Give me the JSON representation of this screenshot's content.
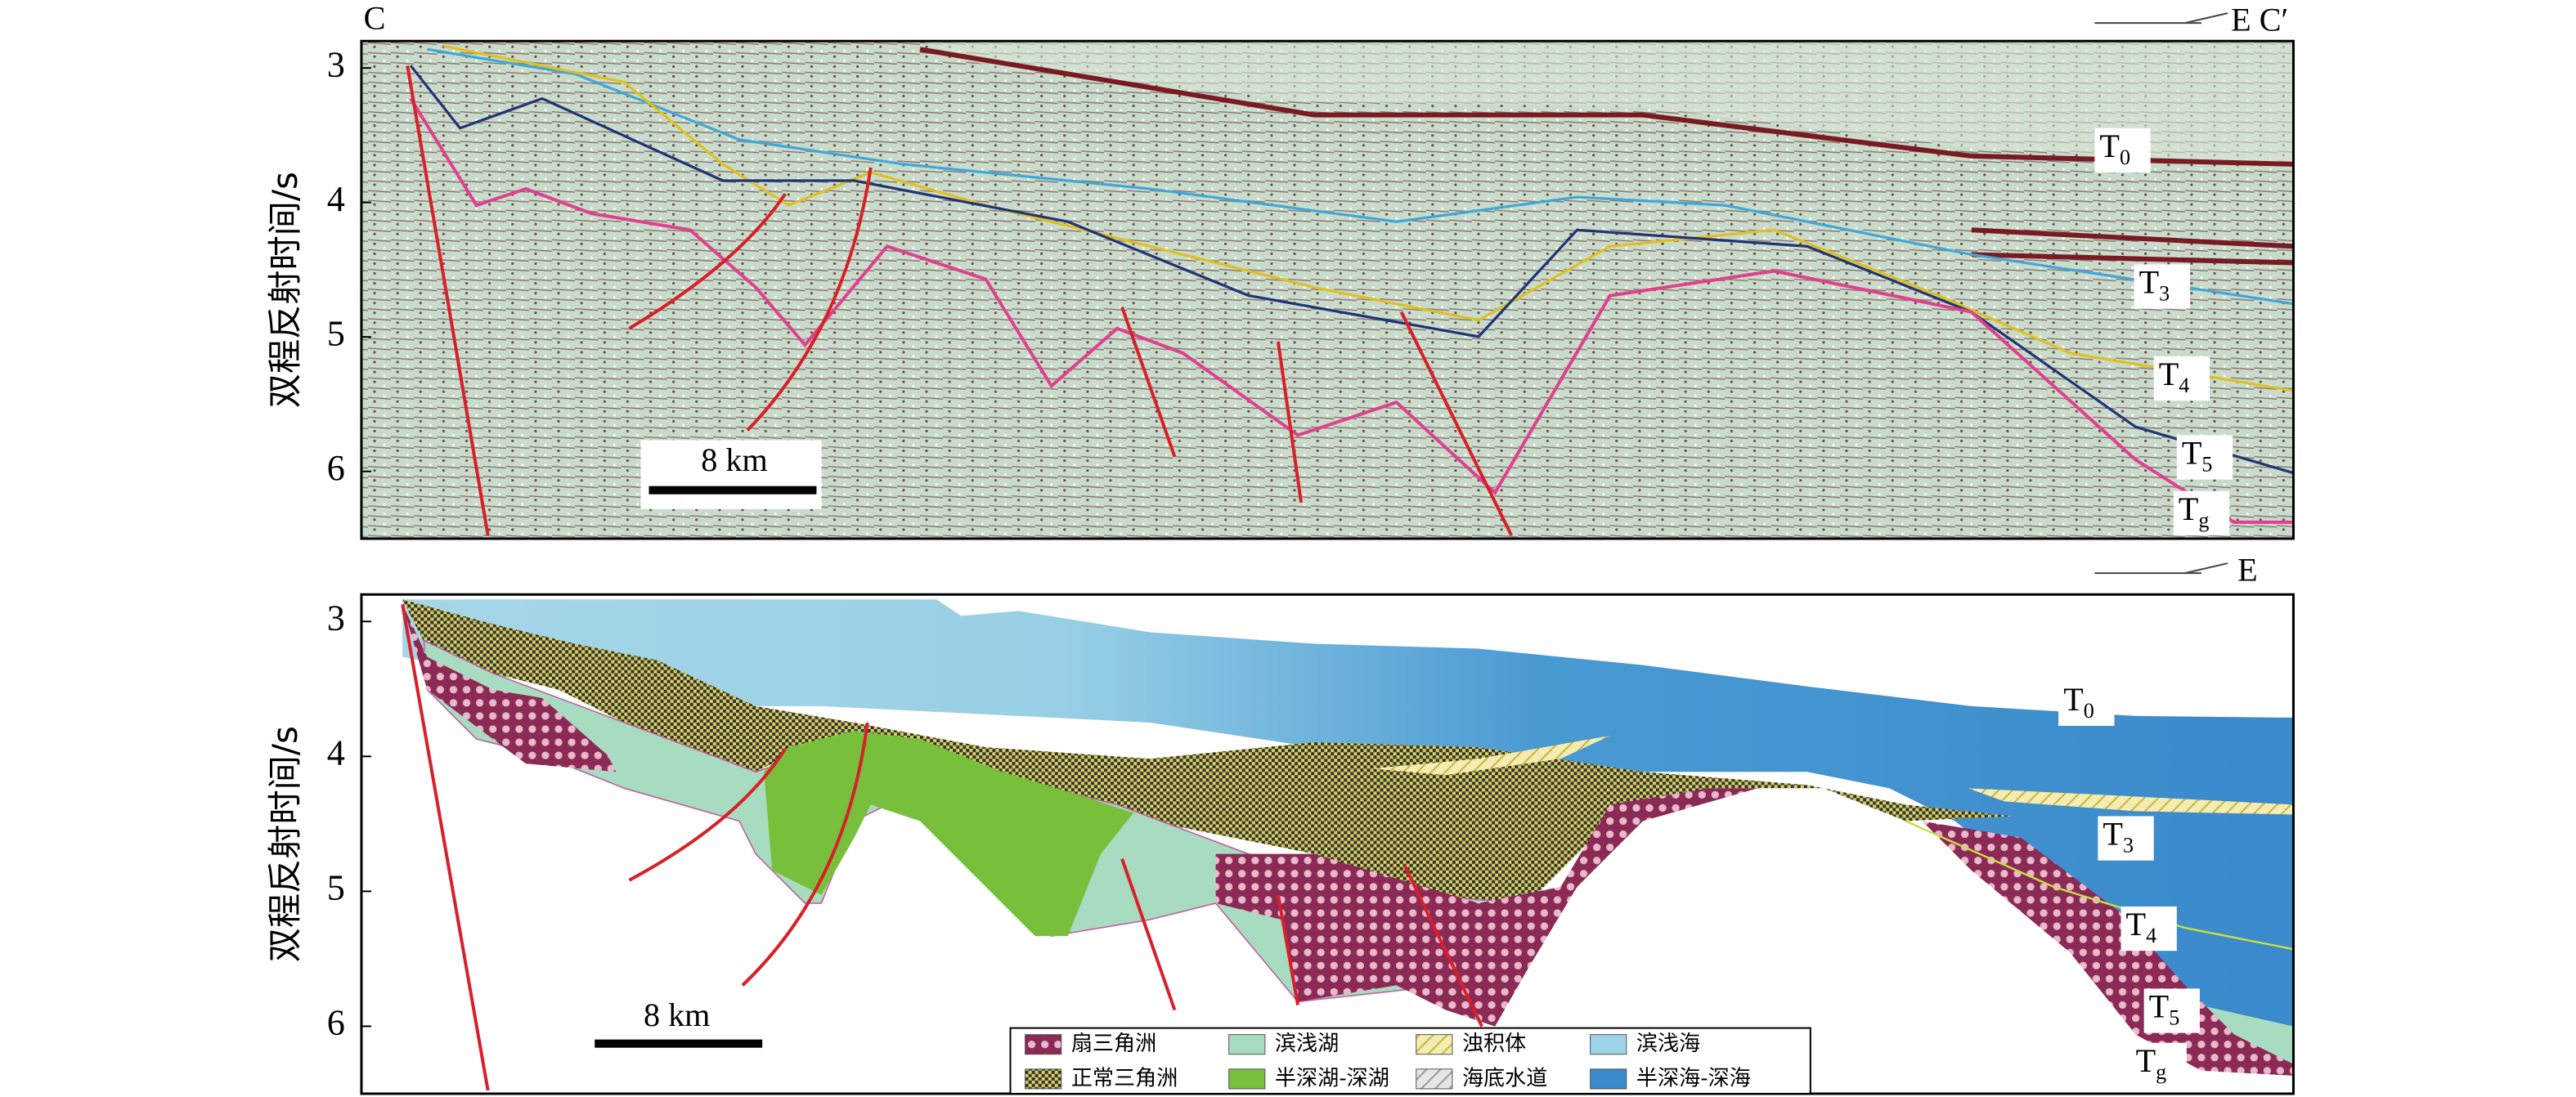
{
  "panels": [
    {
      "label_left": "C",
      "label_right": "E C′",
      "y_axis_title": "双程反射时间/s",
      "yticks": [
        3,
        4,
        5,
        6
      ],
      "ylim": [
        2.8,
        6.5
      ],
      "horizons": [
        {
          "base": "T",
          "sub": "0"
        },
        {
          "base": "T",
          "sub": "3"
        },
        {
          "base": "T",
          "sub": "4"
        },
        {
          "base": "T",
          "sub": "5"
        },
        {
          "base": "T",
          "sub": "g"
        }
      ],
      "scale_bar": "8 km"
    },
    {
      "label_right": "E",
      "y_axis_title": "双程反射时间/s",
      "yticks": [
        3,
        4,
        5,
        6
      ],
      "ylim": [
        2.8,
        6.5
      ],
      "horizons": [
        {
          "base": "T",
          "sub": "0"
        },
        {
          "base": "T",
          "sub": "3"
        },
        {
          "base": "T",
          "sub": "4"
        },
        {
          "base": "T",
          "sub": "5"
        },
        {
          "base": "T",
          "sub": "g"
        }
      ],
      "scale_bar": "8 km"
    }
  ],
  "legend": [
    "扇三角洲",
    "滨浅湖",
    "浊积体",
    "滨浅海",
    "正常三角洲",
    "半深湖-深湖",
    "海底水道",
    "半深海-深海"
  ]
}
